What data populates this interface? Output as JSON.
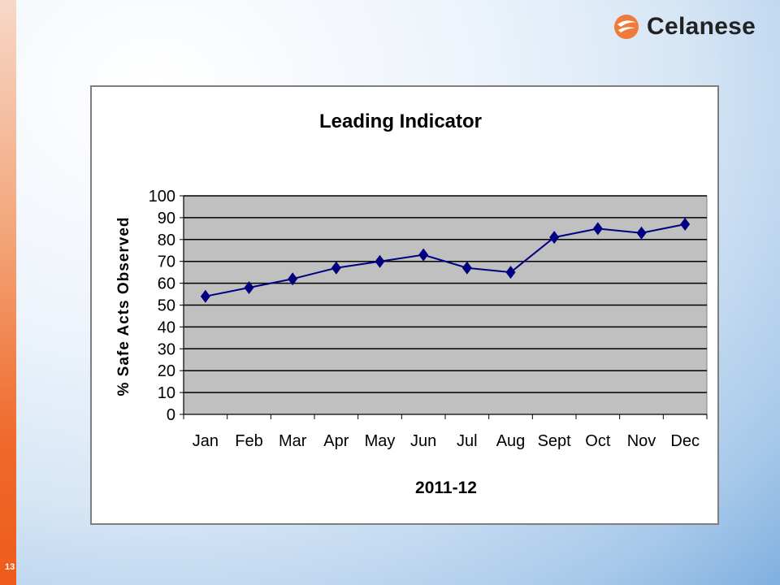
{
  "slide": {
    "page_number": "13"
  },
  "brand": {
    "name": "Celanese",
    "logo_color": "#ef7a3a"
  },
  "chart_data": {
    "type": "line",
    "title": "Leading Indicator",
    "xlabel": "2011-12",
    "ylabel": "% Safe Acts Observed",
    "categories": [
      "Jan",
      "Feb",
      "Mar",
      "Apr",
      "May",
      "Jun",
      "Jul",
      "Aug",
      "Sept",
      "Oct",
      "Nov",
      "Dec"
    ],
    "series": [
      {
        "values": [
          54,
          58,
          62,
          67,
          70,
          73,
          67,
          65,
          81,
          85,
          83,
          87
        ],
        "color": "#000080",
        "marker": "diamond"
      }
    ],
    "ylim": [
      0,
      100
    ],
    "yticks": [
      0,
      10,
      20,
      30,
      40,
      50,
      60,
      70,
      80,
      90,
      100
    ],
    "grid": true,
    "plot_background": "#c0c0c0",
    "legend": "none"
  }
}
